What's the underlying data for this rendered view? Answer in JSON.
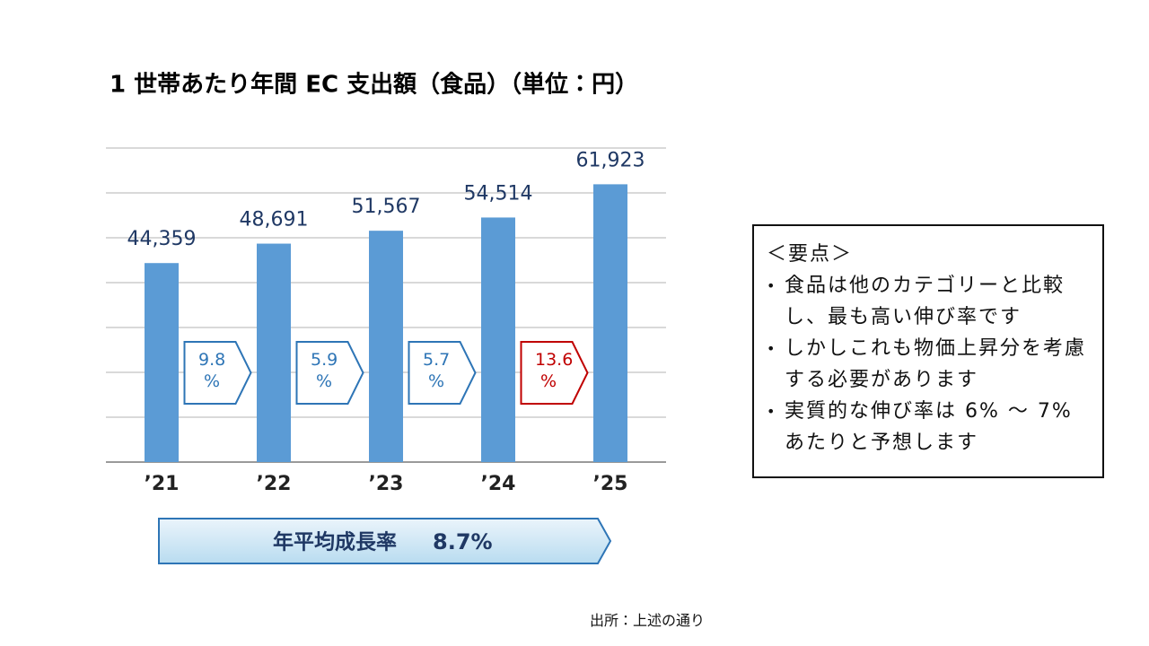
{
  "chart_data": {
    "type": "bar",
    "title": "1 世帯あたり年間 EC 支出額（食品）（単位：円）",
    "categories": [
      "’21",
      "’22",
      "’23",
      "’24",
      "’25"
    ],
    "values": [
      44359,
      48691,
      51567,
      54514,
      61923
    ],
    "value_labels": [
      "44,359",
      "48,691",
      "51,567",
      "54,514",
      "61,923"
    ],
    "color": "#5b9bd5",
    "ylim": [
      0,
      70000
    ],
    "yticks": [
      0,
      10000,
      20000,
      30000,
      40000,
      50000,
      60000,
      70000
    ],
    "grid": true,
    "growth": [
      {
        "value": 9.8,
        "label": "9.8 %",
        "color": "#2e75b6"
      },
      {
        "value": 5.9,
        "label": "5.9 %",
        "color": "#2e75b6"
      },
      {
        "value": 5.7,
        "label": "5.7 %",
        "color": "#2e75b6"
      },
      {
        "value": 13.6,
        "label": "13.6 %",
        "color": "#c00000"
      }
    ],
    "average_growth": {
      "label": "年平均成長率",
      "value": 8.7,
      "value_label": "8.7%"
    }
  },
  "notes": {
    "heading": "＜要点＞",
    "bullets": [
      "食品は他のカテゴリーと比較し、最も高い伸び率です",
      "しかしこれも物価上昇分を考慮する必要があります",
      "実質的な伸び率は 6% ～ 7% あたりと予想します"
    ]
  },
  "source": "出所：上述の通り"
}
